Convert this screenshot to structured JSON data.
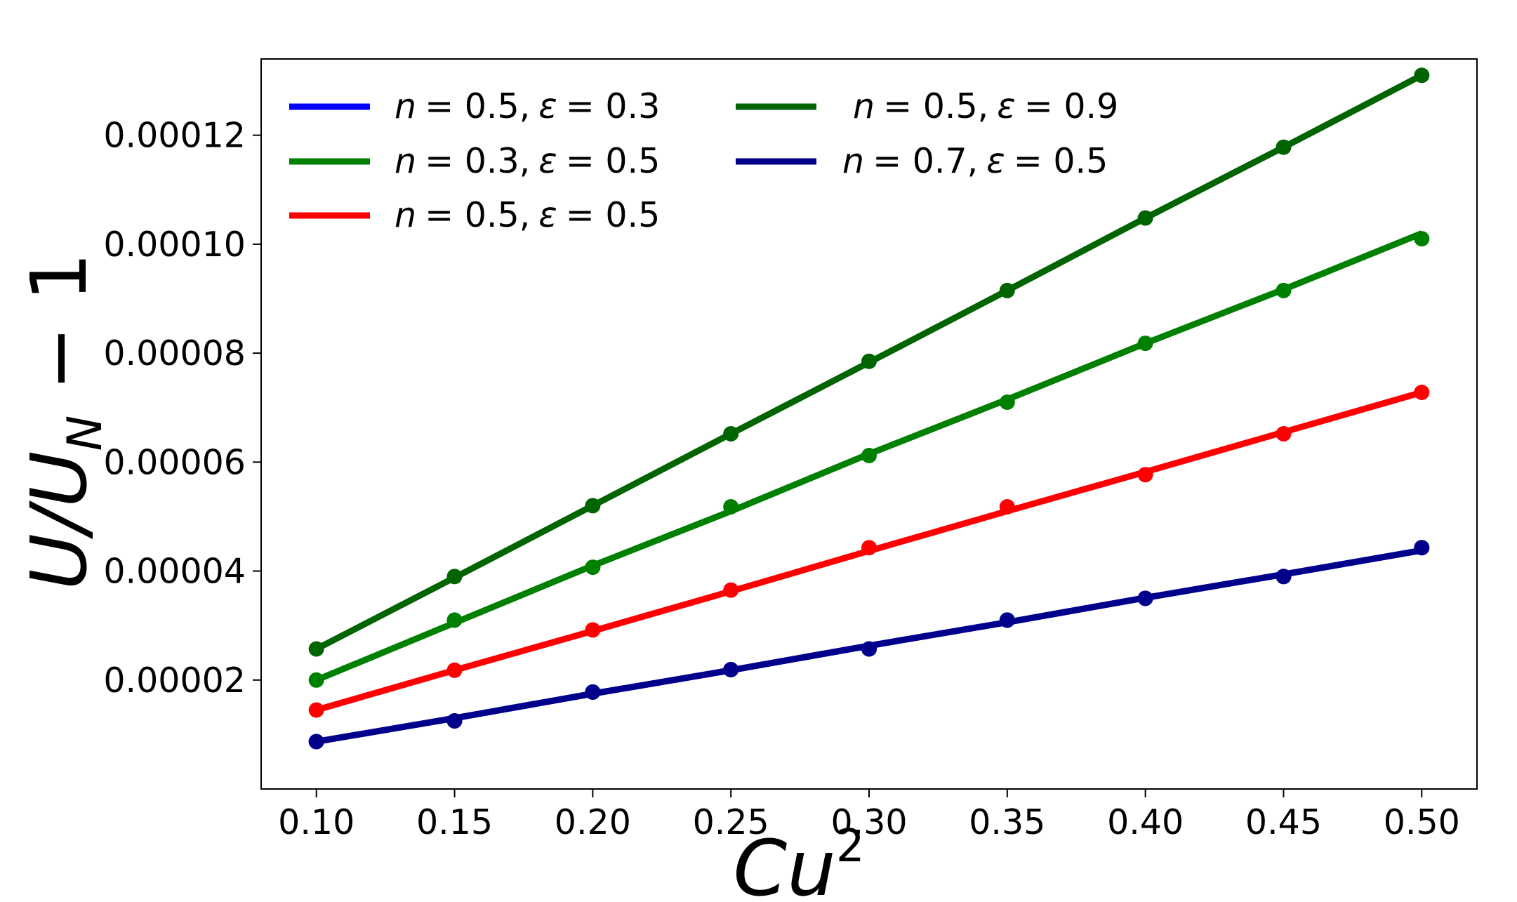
{
  "chart_data": {
    "type": "line",
    "xlabel": "Cu²",
    "ylabel": "U/U_N − 1",
    "xlim": [
      0.08,
      0.52
    ],
    "ylim": [
      0.0,
      0.000134
    ],
    "x_ticks": [
      "0.10",
      "0.15",
      "0.20",
      "0.25",
      "0.30",
      "0.35",
      "0.40",
      "0.45",
      "0.50"
    ],
    "y_ticks": [
      "0.00002",
      "0.00004",
      "0.00006",
      "0.00008",
      "0.00010",
      "0.00012"
    ],
    "x_tick_values": [
      0.1,
      0.15,
      0.2,
      0.25,
      0.3,
      0.35,
      0.4,
      0.45,
      0.5
    ],
    "y_tick_values": [
      2e-05,
      4e-05,
      6e-05,
      8e-05,
      0.0001,
      0.00012
    ],
    "legend_position": "upper-left, two columns",
    "grid": false,
    "x": [
      0.1,
      0.15,
      0.2,
      0.25,
      0.3,
      0.35,
      0.4,
      0.45,
      0.5
    ],
    "series": [
      {
        "name": "n = 0.5, ε = 0.3",
        "color": "#0000ff",
        "points": [
          8.7e-06,
          1.25e-05,
          1.78e-05,
          2.19e-05,
          2.57e-05,
          3.1e-05,
          3.5e-05,
          3.9e-05,
          4.43e-05
        ],
        "fit": [
          8.7e-06,
          1.3e-05,
          1.75e-05,
          2.18e-05,
          2.63e-05,
          3.06e-05,
          3.51e-05,
          3.94e-05,
          4.38e-05
        ]
      },
      {
        "name": "n = 0.3, ε = 0.5",
        "color": "#008000",
        "points": [
          2e-05,
          3.1e-05,
          4.07e-05,
          5.18e-05,
          6.12e-05,
          7.1e-05,
          8.18e-05,
          9.15e-05,
          0.000101
        ],
        "fit": [
          2e-05,
          3.05e-05,
          4.1e-05,
          5.1e-05,
          6.15e-05,
          7.15e-05,
          8.18e-05,
          9.17e-05,
          0.000102
        ]
      },
      {
        "name": "n = 0.5, ε = 0.5",
        "color": "#ff0000",
        "points": [
          1.45e-05,
          2.18e-05,
          2.92e-05,
          3.65e-05,
          4.43e-05,
          5.18e-05,
          5.77e-05,
          6.52e-05,
          7.28e-05
        ],
        "fit": [
          1.45e-05,
          2.18e-05,
          2.9e-05,
          3.63e-05,
          4.37e-05,
          5.1e-05,
          5.82e-05,
          6.55e-05,
          7.28e-05
        ]
      },
      {
        "name": "n = 0.5, ε = 0.9",
        "color": "#006400",
        "points": [
          2.57e-05,
          3.9e-05,
          5.2e-05,
          6.52e-05,
          7.85e-05,
          9.15e-05,
          0.0001048,
          0.0001178,
          0.000131
        ],
        "fit": [
          2.57e-05,
          3.88e-05,
          5.2e-05,
          6.52e-05,
          7.83e-05,
          9.15e-05,
          0.0001048,
          0.0001178,
          0.000131
        ]
      },
      {
        "name": "n = 0.7, ε = 0.5",
        "color": "#00008b",
        "points": [
          8.7e-06,
          1.25e-05,
          1.78e-05,
          2.19e-05,
          2.57e-05,
          3.1e-05,
          3.5e-05,
          3.9e-05,
          4.43e-05
        ],
        "fit": [
          8.7e-06,
          1.3e-05,
          1.75e-05,
          2.18e-05,
          2.63e-05,
          3.06e-05,
          3.51e-05,
          3.94e-05,
          4.38e-05
        ]
      }
    ],
    "legend": [
      {
        "label_n": "n",
        "label_n_val": "= 0.5,",
        "label_e": "ε",
        "label_e_val": "= 0.3",
        "series": 0
      },
      {
        "label_n": "n",
        "label_n_val": "= 0.3,",
        "label_e": "ε",
        "label_e_val": "= 0.5",
        "series": 1
      },
      {
        "label_n": "n",
        "label_n_val": "= 0.5,",
        "label_e": "ε",
        "label_e_val": "= 0.5",
        "series": 2
      },
      {
        "label_n": "n",
        "label_n_val": "= 0.5,",
        "label_e": "ε",
        "label_e_val": "= 0.9",
        "series": 3
      },
      {
        "label_n": "n",
        "label_n_val": "= 0.7,",
        "label_e": "ε",
        "label_e_val": "= 0.5",
        "series": 4
      }
    ]
  }
}
